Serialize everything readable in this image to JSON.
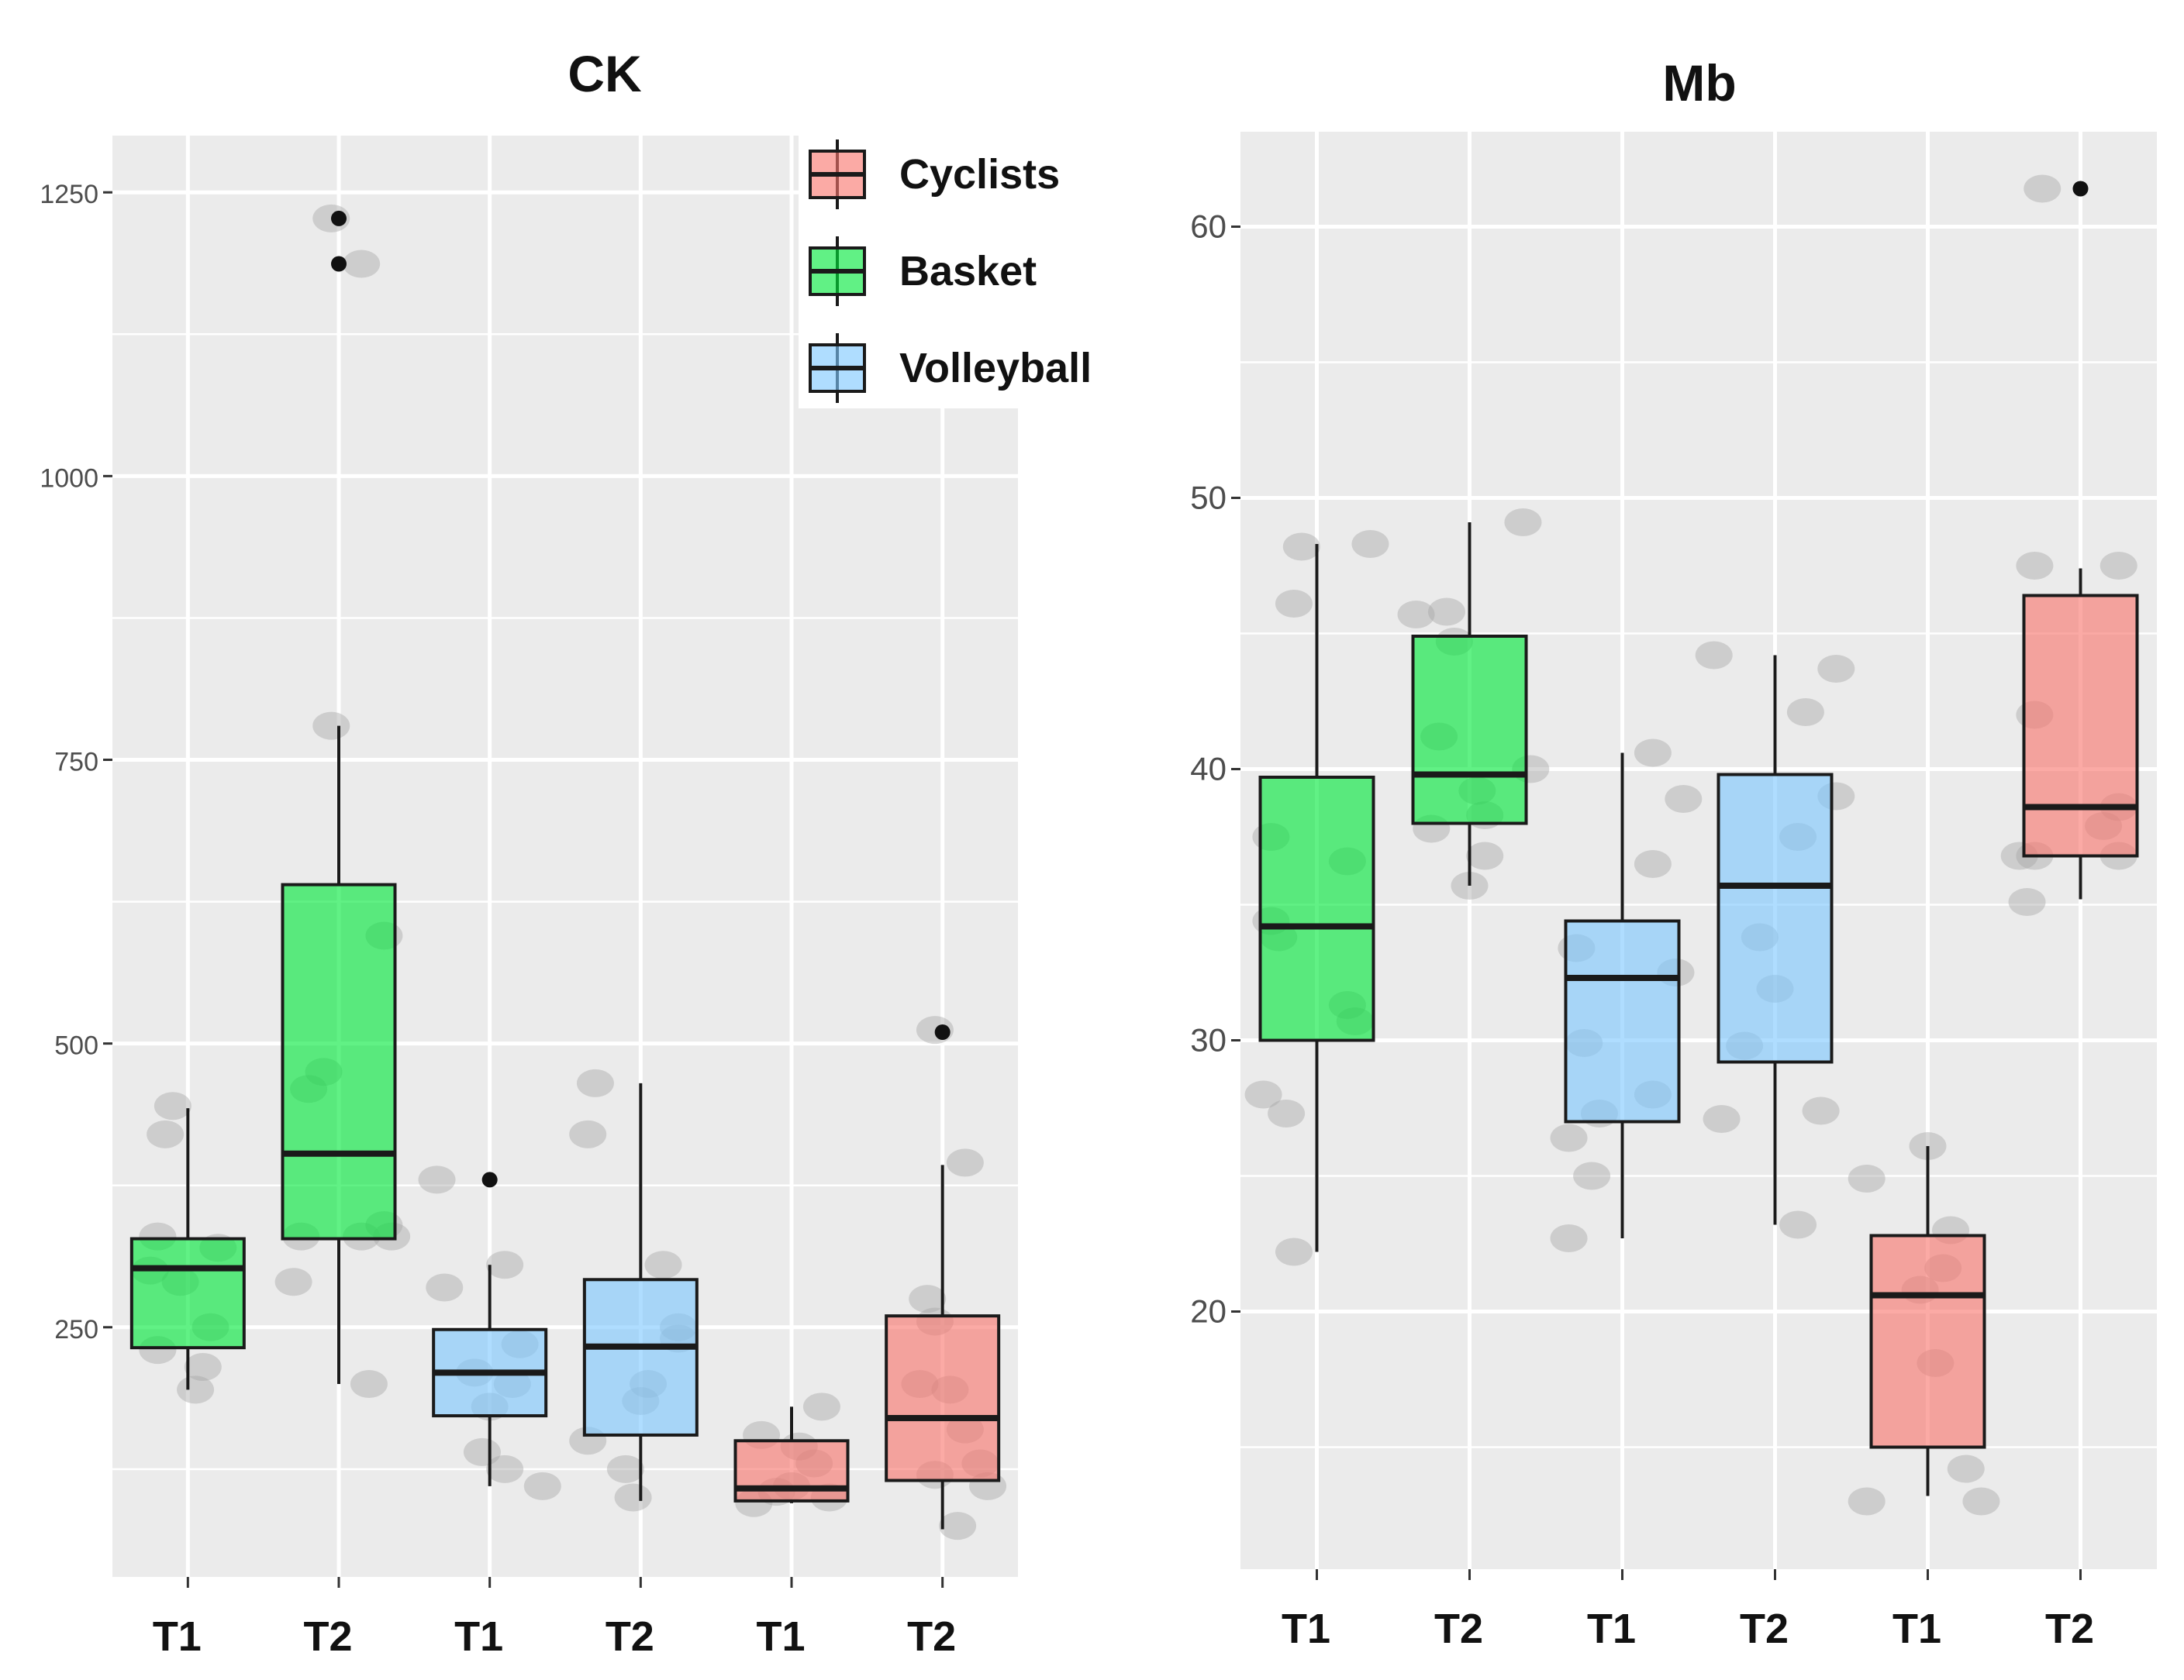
{
  "chart_data": [
    {
      "type": "box",
      "title": "CK",
      "ylim": [
        30,
        1300
      ],
      "yticks": [
        250,
        500,
        750,
        1000,
        1250
      ],
      "ytick_labels": [
        "250",
        "500",
        "750",
        "1000",
        "1250"
      ],
      "categories": [
        "T1",
        "T2",
        "T1",
        "T2",
        "T1",
        "T2"
      ],
      "groups": [
        "Basket",
        "Basket",
        "Volleyball",
        "Volleyball",
        "Cyclists",
        "Cyclists"
      ],
      "boxes": [
        {
          "label": "T1",
          "group": "Basket",
          "whisker_low": 195,
          "q1": 232,
          "median": 302,
          "q3": 328,
          "whisker_high": 443,
          "outliers": [],
          "points": [
            [
              -0.25,
              300
            ],
            [
              -0.2,
              330
            ],
            [
              -0.15,
              420
            ],
            [
              -0.1,
              445
            ],
            [
              -0.2,
              230
            ],
            [
              0.05,
              195
            ],
            [
              0.1,
              215
            ],
            [
              0.2,
              320
            ],
            [
              -0.05,
              290
            ],
            [
              0.15,
              250
            ]
          ]
        },
        {
          "label": "T2",
          "group": "Basket",
          "whisker_low": 200,
          "q1": 328,
          "median": 403,
          "q3": 640,
          "whisker_high": 780,
          "outliers": [
            1227,
            1187
          ],
          "points": [
            [
              -0.05,
              1227
            ],
            [
              0.15,
              1187
            ],
            [
              -0.05,
              780
            ],
            [
              -0.3,
              290
            ],
            [
              -0.2,
              460
            ],
            [
              -0.1,
              475
            ],
            [
              0.3,
              595
            ],
            [
              0.3,
              340
            ],
            [
              0.35,
              330
            ],
            [
              0.15,
              330
            ],
            [
              0.2,
              200
            ],
            [
              -0.25,
              330
            ]
          ]
        },
        {
          "label": "T1",
          "group": "Volleyball",
          "whisker_low": 110,
          "q1": 172,
          "median": 210,
          "q3": 248,
          "whisker_high": 305,
          "outliers": [
            380
          ],
          "points": [
            [
              -0.35,
              380
            ],
            [
              -0.3,
              285
            ],
            [
              0.1,
              305
            ],
            [
              -0.05,
              140
            ],
            [
              0.1,
              125
            ],
            [
              0.35,
              110
            ],
            [
              -0.1,
              210
            ],
            [
              0.2,
              235
            ],
            [
              0.15,
              200
            ],
            [
              0.0,
              180
            ]
          ]
        },
        {
          "label": "T2",
          "group": "Volleyball",
          "whisker_low": 97,
          "q1": 155,
          "median": 233,
          "q3": 292,
          "whisker_high": 465,
          "outliers": [],
          "points": [
            [
              -0.3,
              465
            ],
            [
              -0.35,
              420
            ],
            [
              -0.35,
              150
            ],
            [
              -0.1,
              125
            ],
            [
              0.15,
              305
            ],
            [
              0.25,
              250
            ],
            [
              0.25,
              240
            ],
            [
              0.0,
              185
            ],
            [
              -0.05,
              100
            ],
            [
              0.05,
              200
            ]
          ]
        },
        {
          "label": "T1",
          "group": "Cyclists",
          "whisker_low": 95,
          "q1": 97,
          "median": 108,
          "q3": 150,
          "whisker_high": 180,
          "outliers": [],
          "points": [
            [
              -0.2,
              155
            ],
            [
              -0.25,
              95
            ],
            [
              0.05,
              145
            ],
            [
              0.2,
              180
            ],
            [
              0.25,
              100
            ],
            [
              0.0,
              110
            ],
            [
              -0.1,
              105
            ],
            [
              0.15,
              130
            ]
          ]
        },
        {
          "label": "T2",
          "group": "Cyclists",
          "whisker_low": 72,
          "q1": 115,
          "median": 170,
          "q3": 260,
          "whisker_high": 393,
          "outliers": [
            510
          ],
          "points": [
            [
              -0.05,
              512
            ],
            [
              0.15,
              395
            ],
            [
              -0.1,
              275
            ],
            [
              -0.05,
              255
            ],
            [
              0.05,
              195
            ],
            [
              -0.15,
              200
            ],
            [
              0.25,
              130
            ],
            [
              0.3,
              110
            ],
            [
              0.1,
              75
            ],
            [
              -0.05,
              120
            ],
            [
              0.15,
              160
            ]
          ]
        }
      ]
    },
    {
      "type": "box",
      "title": "Mb",
      "ylim": [
        10.5,
        63.5
      ],
      "yticks": [
        20,
        30,
        40,
        50,
        60
      ],
      "ytick_labels": [
        "20",
        "30",
        "40",
        "50",
        "60"
      ],
      "categories": [
        "T1",
        "T2",
        "T1",
        "T2",
        "T1",
        "T2"
      ],
      "groups": [
        "Basket",
        "Basket",
        "Volleyball",
        "Volleyball",
        "Cyclists",
        "Cyclists"
      ],
      "boxes": [
        {
          "label": "T1",
          "group": "Basket",
          "whisker_low": 22.2,
          "q1": 30.0,
          "median": 34.2,
          "q3": 39.7,
          "whisker_high": 48.3,
          "outliers": [],
          "points": [
            [
              -0.1,
              48.2
            ],
            [
              0.35,
              48.3
            ],
            [
              -0.15,
              46.1
            ],
            [
              -0.3,
              34.4
            ],
            [
              -0.25,
              33.8
            ],
            [
              -0.35,
              28.0
            ],
            [
              -0.2,
              27.3
            ],
            [
              -0.15,
              22.2
            ],
            [
              0.2,
              36.6
            ],
            [
              0.2,
              31.3
            ],
            [
              0.25,
              30.7
            ],
            [
              -0.3,
              37.5
            ]
          ]
        },
        {
          "label": "T2",
          "group": "Basket",
          "whisker_low": 35.7,
          "q1": 38.0,
          "median": 39.8,
          "q3": 44.9,
          "whisker_high": 49.1,
          "outliers": [],
          "points": [
            [
              0.35,
              49.1
            ],
            [
              -0.35,
              45.7
            ],
            [
              -0.15,
              45.8
            ],
            [
              -0.1,
              44.7
            ],
            [
              -0.2,
              41.2
            ],
            [
              -0.25,
              37.8
            ],
            [
              0.1,
              38.3
            ],
            [
              0.0,
              35.7
            ],
            [
              0.1,
              36.8
            ],
            [
              0.4,
              40.0
            ],
            [
              0.05,
              39.2
            ]
          ]
        },
        {
          "label": "T1",
          "group": "Volleyball",
          "whisker_low": 22.7,
          "q1": 27.0,
          "median": 32.3,
          "q3": 34.4,
          "whisker_high": 40.6,
          "outliers": [],
          "points": [
            [
              0.2,
              40.6
            ],
            [
              0.4,
              38.9
            ],
            [
              0.2,
              36.5
            ],
            [
              -0.3,
              33.4
            ],
            [
              -0.25,
              29.9
            ],
            [
              -0.35,
              26.4
            ],
            [
              -0.15,
              27.3
            ],
            [
              -0.2,
              25.0
            ],
            [
              -0.35,
              22.7
            ],
            [
              0.2,
              28.0
            ],
            [
              0.35,
              32.5
            ]
          ]
        },
        {
          "label": "T2",
          "group": "Volleyball",
          "whisker_low": 23.2,
          "q1": 29.2,
          "median": 35.7,
          "q3": 39.8,
          "whisker_high": 44.2,
          "outliers": [],
          "points": [
            [
              -0.4,
              44.2
            ],
            [
              0.4,
              43.7
            ],
            [
              0.2,
              42.1
            ],
            [
              0.15,
              37.5
            ],
            [
              0.4,
              39.0
            ],
            [
              -0.1,
              33.8
            ],
            [
              0.0,
              31.9
            ],
            [
              -0.2,
              29.8
            ],
            [
              -0.35,
              27.1
            ],
            [
              0.3,
              27.4
            ],
            [
              0.15,
              23.2
            ]
          ]
        },
        {
          "label": "T1",
          "group": "Cyclists",
          "whisker_low": 13.2,
          "q1": 15.0,
          "median": 20.6,
          "q3": 22.8,
          "whisker_high": 26.1,
          "outliers": [],
          "points": [
            [
              0.0,
              26.1
            ],
            [
              -0.4,
              24.9
            ],
            [
              0.15,
              23.0
            ],
            [
              -0.05,
              20.8
            ],
            [
              0.05,
              18.1
            ],
            [
              0.25,
              14.2
            ],
            [
              0.35,
              13.0
            ],
            [
              -0.4,
              13.0
            ],
            [
              0.1,
              21.6
            ]
          ]
        },
        {
          "label": "T2",
          "group": "Cyclists",
          "whisker_low": 35.2,
          "q1": 36.8,
          "median": 38.6,
          "q3": 46.4,
          "whisker_high": 47.4,
          "outliers": [
            61.4
          ],
          "points": [
            [
              -0.25,
              61.4
            ],
            [
              -0.3,
              47.5
            ],
            [
              0.25,
              47.5
            ],
            [
              -0.3,
              42.0
            ],
            [
              -0.3,
              36.8
            ],
            [
              -0.4,
              36.8
            ],
            [
              0.25,
              36.8
            ],
            [
              0.15,
              37.9
            ],
            [
              0.25,
              38.6
            ],
            [
              -0.35,
              35.1
            ]
          ]
        }
      ]
    }
  ],
  "legend": [
    {
      "name": "Cyclists",
      "color": "#f8766d"
    },
    {
      "name": "Basket",
      "color": "#00e93a"
    },
    {
      "name": "Volleyball",
      "color": "#7ec8ff"
    }
  ],
  "colors": {
    "Cyclists": "#f8766d",
    "Basket": "#00e93a",
    "Volleyball": "#7ec8ff",
    "panel": "#ebebeb",
    "grid": "#ffffff",
    "jitter": "#a8a8a8",
    "outline": "#1a1a1a"
  }
}
